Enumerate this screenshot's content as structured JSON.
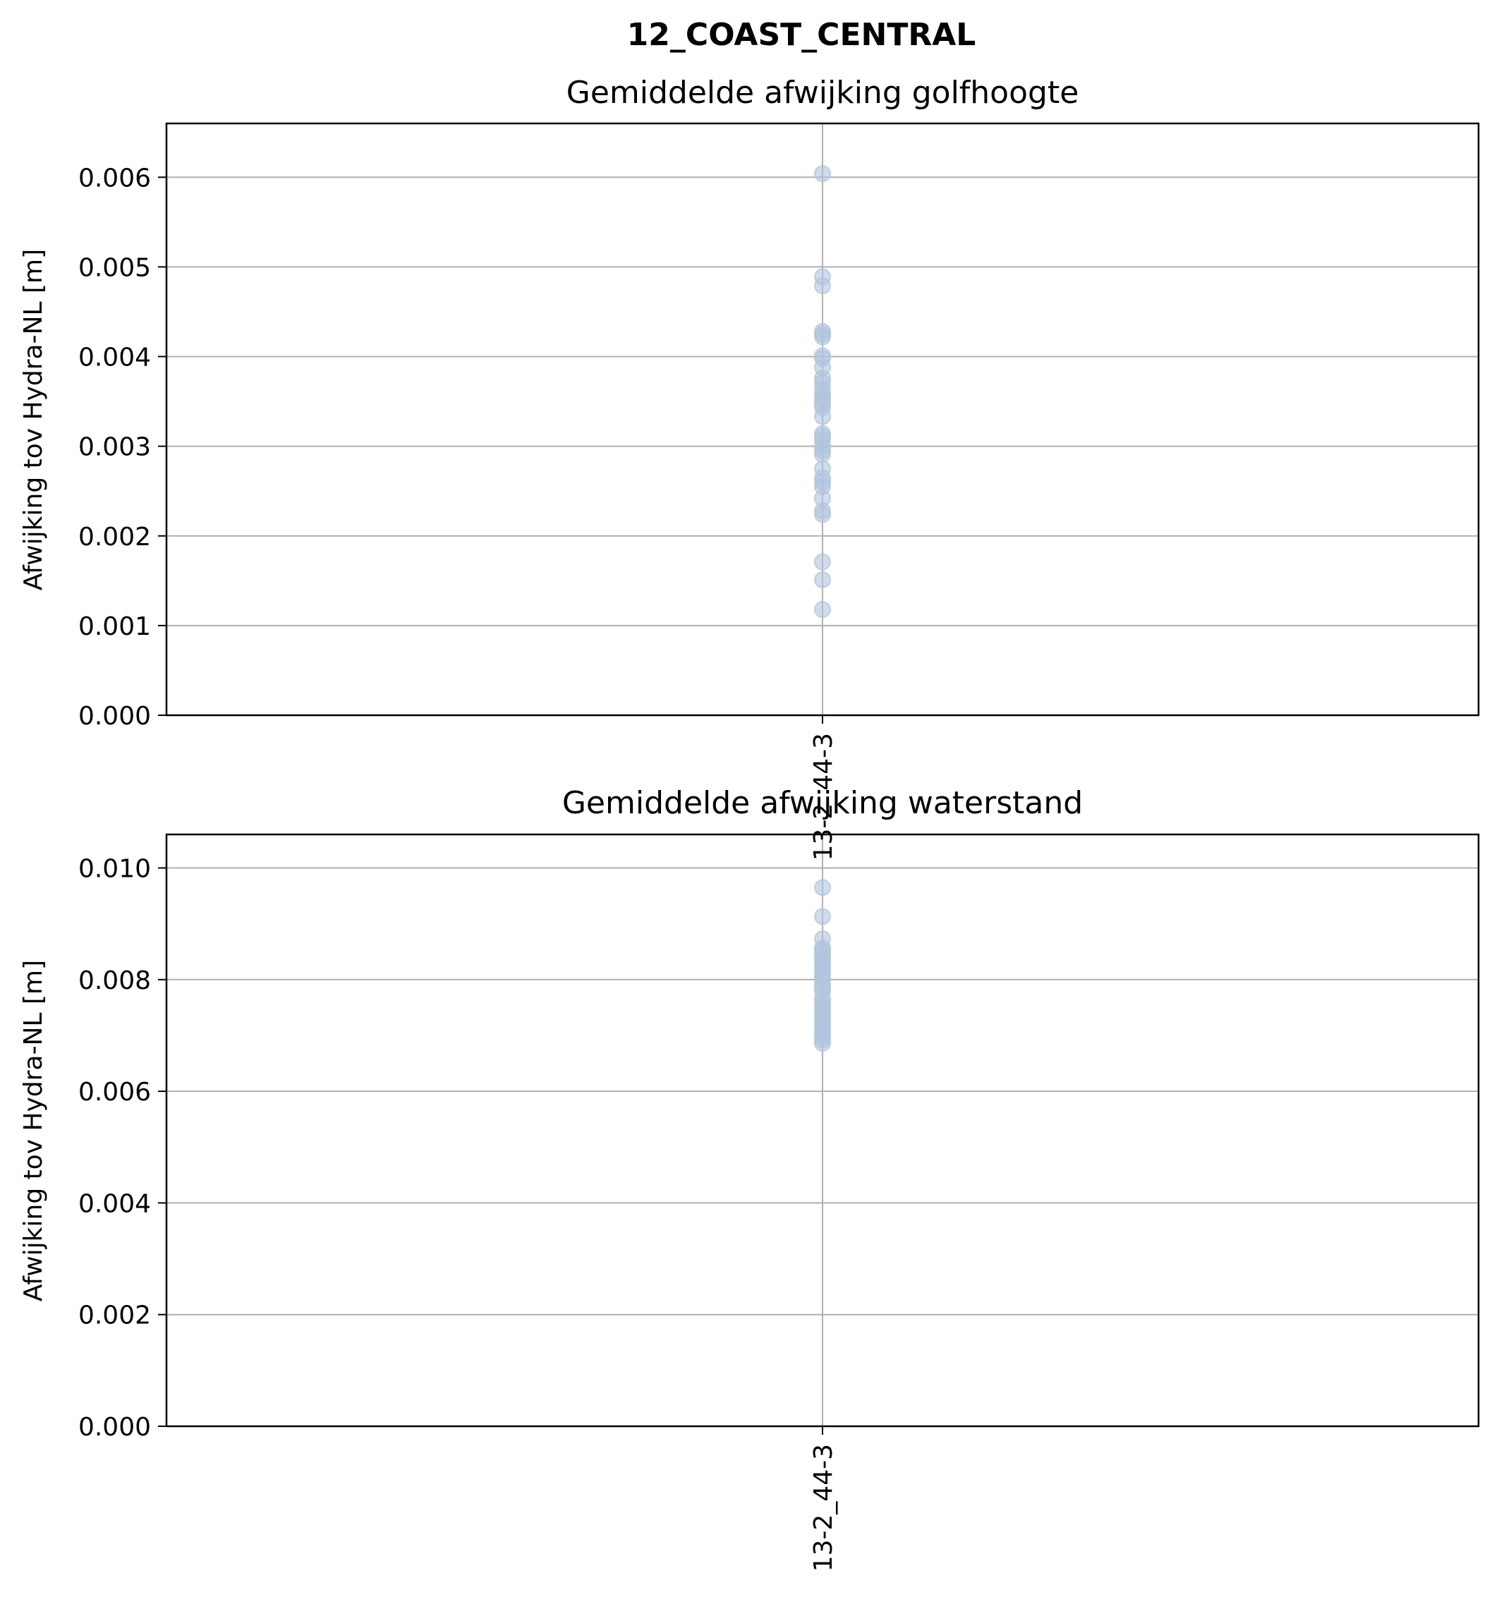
{
  "figure": {
    "title": "12_COAST_CENTRAL"
  },
  "style": {
    "marker_color": "#b0c4de",
    "grid_color": "#b0b0b0",
    "axis_color": "#000000"
  },
  "chart_data": [
    {
      "type": "scatter",
      "title": "Gemiddelde afwijking golfhoogte",
      "xlabel": "",
      "ylabel": "Afwijking tov Hydra-NL [m]",
      "categories": [
        "13-2_44-3"
      ],
      "ylim": [
        0,
        0.0066
      ],
      "yticks": [
        "0.000",
        "0.001",
        "0.002",
        "0.003",
        "0.004",
        "0.005",
        "0.006"
      ],
      "grid": true,
      "series": [
        {
          "category": "13-2_44-3",
          "values": [
            0.00604,
            0.00489,
            0.00479,
            0.00428,
            0.00425,
            0.00422,
            0.00401,
            0.00398,
            0.00388,
            0.00376,
            0.00371,
            0.00364,
            0.00358,
            0.00354,
            0.00351,
            0.00347,
            0.00343,
            0.00333,
            0.00314,
            0.00311,
            0.00307,
            0.003,
            0.00295,
            0.00291,
            0.00275,
            0.00265,
            0.0026,
            0.00255,
            0.00242,
            0.00228,
            0.00224,
            0.00171,
            0.00151,
            0.00118
          ]
        }
      ]
    },
    {
      "type": "scatter",
      "title": "Gemiddelde afwijking waterstand",
      "xlabel": "",
      "ylabel": "Afwijking tov Hydra-NL [m]",
      "categories": [
        "13-2_44-3"
      ],
      "ylim": [
        0,
        0.0106
      ],
      "yticks": [
        "0.000",
        "0.002",
        "0.004",
        "0.006",
        "0.008",
        "0.010"
      ],
      "grid": true,
      "series": [
        {
          "category": "13-2_44-3",
          "values": [
            0.00965,
            0.00913,
            0.00873,
            0.00857,
            0.00852,
            0.00846,
            0.0084,
            0.00833,
            0.00826,
            0.0082,
            0.00813,
            0.00806,
            0.00799,
            0.00791,
            0.00785,
            0.00779,
            0.00766,
            0.0076,
            0.00753,
            0.00746,
            0.00739,
            0.00733,
            0.00726,
            0.00719,
            0.00713,
            0.00705,
            0.00698,
            0.00692,
            0.00686
          ]
        }
      ]
    }
  ]
}
